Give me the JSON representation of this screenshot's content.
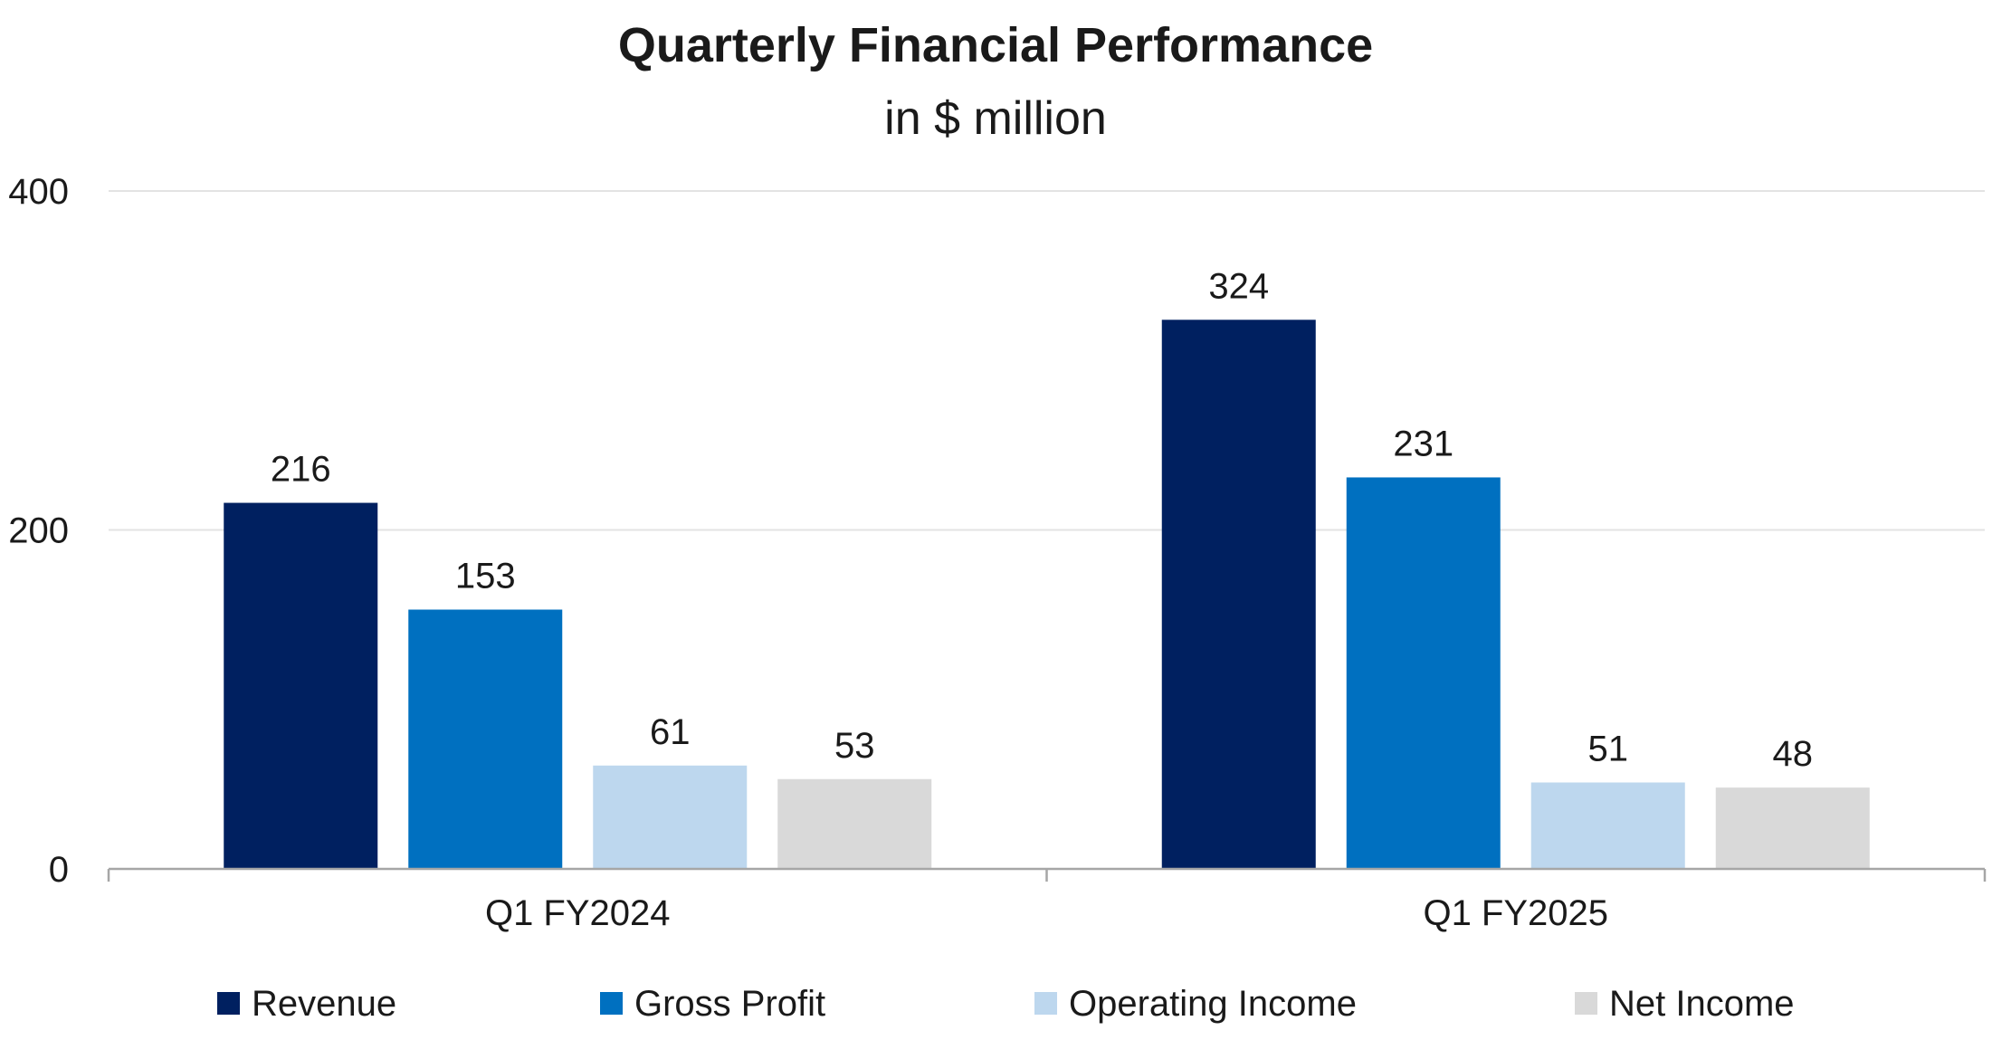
{
  "chart_data": {
    "type": "bar",
    "title": "Quarterly Financial Performance",
    "subtitle": "in $ million",
    "xlabel": "",
    "ylabel": "",
    "categories": [
      "Q1 FY2024",
      "Q1 FY2025"
    ],
    "series": [
      {
        "name": "Revenue",
        "color": "#002060",
        "values": [
          216,
          324
        ]
      },
      {
        "name": "Gross Profit",
        "color": "#0070C0",
        "values": [
          153,
          231
        ]
      },
      {
        "name": "Operating Income",
        "color": "#BDD7EE",
        "values": [
          61,
          51
        ]
      },
      {
        "name": "Net Income",
        "color": "#D9D9D9",
        "values": [
          53,
          48
        ]
      }
    ],
    "ylim": [
      0,
      400
    ],
    "yticks": [
      0,
      200,
      400
    ],
    "grid": true,
    "legend": "bottom",
    "data_labels": true
  }
}
